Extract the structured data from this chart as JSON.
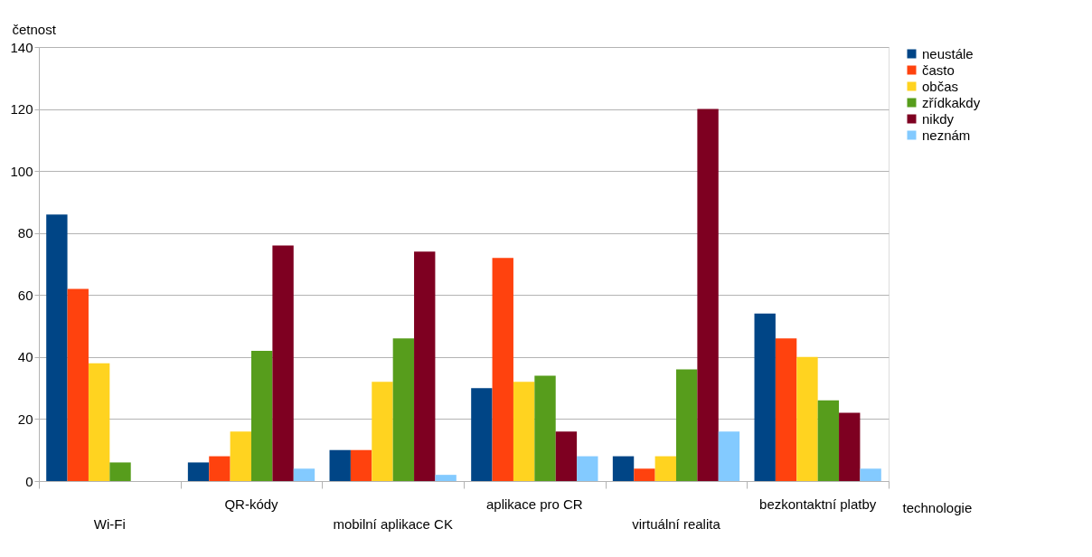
{
  "chart_data": {
    "type": "bar",
    "ylabel": "četnost",
    "xlabel": "technologie",
    "categories": [
      "Wi-Fi",
      "QR-kódy",
      "mobilní aplikace CK",
      "aplikace pro CR",
      "virtuální realita",
      "bezkontaktní platby"
    ],
    "series": [
      {
        "name": "neustále",
        "color": "#004586",
        "values": [
          86,
          6,
          10,
          30,
          8,
          54
        ]
      },
      {
        "name": "často",
        "color": "#ff420e",
        "values": [
          62,
          8,
          10,
          72,
          4,
          46
        ]
      },
      {
        "name": "občas",
        "color": "#ffd320",
        "values": [
          38,
          16,
          32,
          32,
          8,
          40
        ]
      },
      {
        "name": "zřídkakdy",
        "color": "#579d1c",
        "values": [
          6,
          42,
          46,
          34,
          36,
          26
        ]
      },
      {
        "name": "nikdy",
        "color": "#7e0021",
        "values": [
          0,
          76,
          74,
          16,
          120,
          22
        ]
      },
      {
        "name": "neznám",
        "color": "#83caff",
        "values": [
          0,
          4,
          2,
          8,
          16,
          4
        ]
      }
    ],
    "ylim": [
      0,
      140
    ],
    "yticks": [
      0,
      20,
      40,
      60,
      80,
      100,
      120,
      140
    ],
    "grid": "y",
    "legend": "right"
  }
}
